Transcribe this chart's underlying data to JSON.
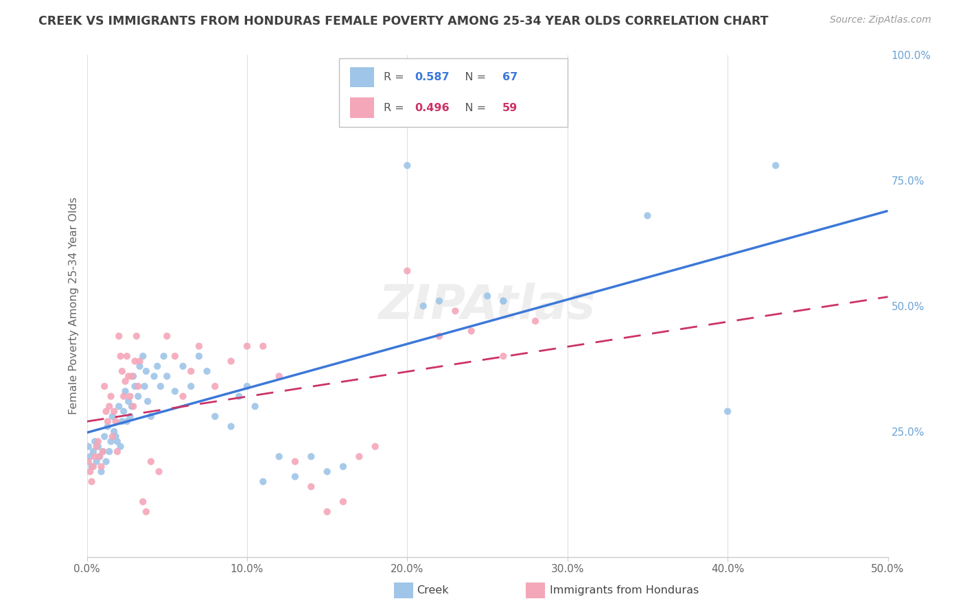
{
  "title": "CREEK VS IMMIGRANTS FROM HONDURAS FEMALE POVERTY AMONG 25-34 YEAR OLDS CORRELATION CHART",
  "source": "Source: ZipAtlas.com",
  "ylabel": "Female Poverty Among 25-34 Year Olds",
  "xlim": [
    0.0,
    0.5
  ],
  "ylim": [
    0.0,
    1.0
  ],
  "xtick_labels": [
    "0.0%",
    "10.0%",
    "20.0%",
    "30.0%",
    "40.0%",
    "50.0%"
  ],
  "xtick_vals": [
    0.0,
    0.1,
    0.2,
    0.3,
    0.4,
    0.5
  ],
  "ytick_labels": [
    "25.0%",
    "50.0%",
    "75.0%",
    "100.0%"
  ],
  "ytick_vals": [
    0.25,
    0.5,
    0.75,
    1.0
  ],
  "creek_color": "#9fc5e8",
  "honduras_color": "#f4a7b9",
  "creek_line_color": "#3c78d8",
  "honduras_line_color": "#cc3366",
  "creek_R": 0.587,
  "creek_N": 67,
  "honduras_R": 0.496,
  "honduras_N": 59,
  "background_color": "#ffffff",
  "grid_color": "#e0e0e0",
  "title_color": "#404040",
  "source_color": "#999999",
  "right_tick_color": "#6aa3d5",
  "watermark_color": "#eeeeee",
  "creek_scatter_x": [
    0.001,
    0.002,
    0.003,
    0.004,
    0.005,
    0.006,
    0.007,
    0.008,
    0.009,
    0.01,
    0.011,
    0.012,
    0.013,
    0.014,
    0.015,
    0.016,
    0.017,
    0.018,
    0.019,
    0.02,
    0.021,
    0.022,
    0.023,
    0.024,
    0.025,
    0.026,
    0.027,
    0.028,
    0.029,
    0.03,
    0.032,
    0.033,
    0.035,
    0.036,
    0.037,
    0.038,
    0.04,
    0.042,
    0.044,
    0.046,
    0.048,
    0.05,
    0.055,
    0.06,
    0.065,
    0.07,
    0.075,
    0.08,
    0.09,
    0.095,
    0.1,
    0.105,
    0.11,
    0.12,
    0.13,
    0.14,
    0.15,
    0.16,
    0.2,
    0.21,
    0.22,
    0.25,
    0.26,
    0.35,
    0.4,
    0.43,
    0.26
  ],
  "creek_scatter_y": [
    0.22,
    0.2,
    0.18,
    0.21,
    0.23,
    0.19,
    0.22,
    0.2,
    0.17,
    0.21,
    0.24,
    0.19,
    0.26,
    0.21,
    0.23,
    0.28,
    0.25,
    0.24,
    0.23,
    0.3,
    0.22,
    0.27,
    0.29,
    0.33,
    0.27,
    0.31,
    0.28,
    0.3,
    0.36,
    0.34,
    0.32,
    0.38,
    0.4,
    0.34,
    0.37,
    0.31,
    0.28,
    0.36,
    0.38,
    0.34,
    0.4,
    0.36,
    0.33,
    0.38,
    0.34,
    0.4,
    0.37,
    0.28,
    0.26,
    0.32,
    0.34,
    0.3,
    0.15,
    0.2,
    0.16,
    0.2,
    0.17,
    0.18,
    0.78,
    0.5,
    0.51,
    0.52,
    0.51,
    0.68,
    0.29,
    0.78,
    0.51
  ],
  "honduras_scatter_x": [
    0.001,
    0.002,
    0.003,
    0.004,
    0.005,
    0.006,
    0.007,
    0.008,
    0.009,
    0.01,
    0.011,
    0.012,
    0.013,
    0.014,
    0.015,
    0.016,
    0.017,
    0.018,
    0.019,
    0.02,
    0.021,
    0.022,
    0.023,
    0.024,
    0.025,
    0.026,
    0.027,
    0.028,
    0.029,
    0.03,
    0.031,
    0.032,
    0.033,
    0.035,
    0.037,
    0.04,
    0.045,
    0.05,
    0.055,
    0.06,
    0.065,
    0.07,
    0.08,
    0.09,
    0.1,
    0.11,
    0.12,
    0.13,
    0.14,
    0.15,
    0.16,
    0.17,
    0.18,
    0.2,
    0.22,
    0.23,
    0.24,
    0.26,
    0.28
  ],
  "honduras_scatter_y": [
    0.19,
    0.17,
    0.15,
    0.18,
    0.2,
    0.22,
    0.23,
    0.2,
    0.18,
    0.21,
    0.34,
    0.29,
    0.27,
    0.3,
    0.32,
    0.24,
    0.29,
    0.27,
    0.21,
    0.44,
    0.4,
    0.37,
    0.32,
    0.35,
    0.4,
    0.36,
    0.32,
    0.36,
    0.3,
    0.39,
    0.44,
    0.34,
    0.39,
    0.11,
    0.09,
    0.19,
    0.17,
    0.44,
    0.4,
    0.32,
    0.37,
    0.42,
    0.34,
    0.39,
    0.42,
    0.42,
    0.36,
    0.19,
    0.14,
    0.09,
    0.11,
    0.2,
    0.22,
    0.57,
    0.44,
    0.49,
    0.45,
    0.4,
    0.47
  ]
}
